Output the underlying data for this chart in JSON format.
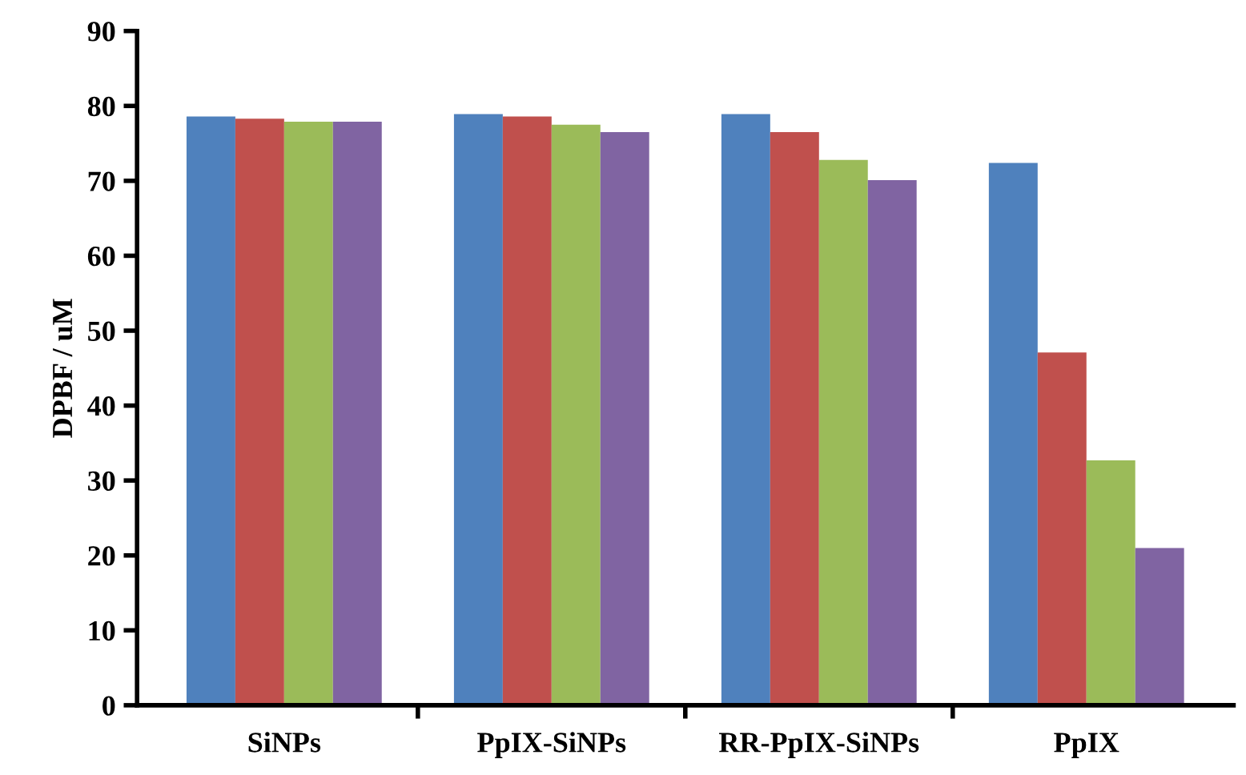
{
  "chart_data": {
    "type": "bar",
    "ylabel": "DPBF / uM",
    "categories": [
      "SiNPs",
      "PpIX-SiNPs",
      "RR-PpIX-SiNPs",
      "PpIX"
    ],
    "series": [
      {
        "color": "#4f81bd",
        "values": [
          78.6,
          78.9,
          78.9,
          72.4
        ]
      },
      {
        "color": "#c0504d",
        "values": [
          78.3,
          78.6,
          76.5,
          47.1
        ]
      },
      {
        "color": "#9bbb59",
        "values": [
          77.9,
          77.5,
          72.8,
          32.7
        ]
      },
      {
        "color": "#8064a2",
        "values": [
          77.9,
          76.5,
          70.1,
          21.0
        ]
      }
    ],
    "ylim": [
      0,
      90
    ],
    "yticks": [
      0,
      10,
      20,
      30,
      40,
      50,
      60,
      70,
      80,
      90
    ],
    "grid": false,
    "legend": false
  }
}
